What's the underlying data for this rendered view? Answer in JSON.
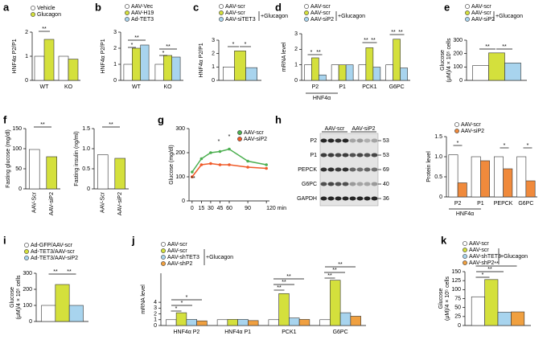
{
  "chart_data": [
    {
      "panel": "a",
      "type": "bar",
      "ylabel": "HNF4α P2/P1",
      "categories": [
        "WT",
        "KO"
      ],
      "series": [
        {
          "name": "Vehicle",
          "color": "#ffffff",
          "values": [
            1.0,
            1.0
          ]
        },
        {
          "name": "Glucagon",
          "color": "#d4e03c",
          "values": [
            1.7,
            0.88
          ]
        }
      ],
      "ylim": [
        0,
        2
      ],
      "yticks": [
        0,
        1,
        2
      ],
      "annotations": [
        "**"
      ]
    },
    {
      "panel": "b",
      "type": "bar",
      "ylabel": "HNF4α P2/P1",
      "categories": [
        "WT",
        "KO"
      ],
      "series": [
        {
          "name": "AAV-Vec",
          "color": "#ffffff",
          "values": [
            1.0,
            1.0
          ]
        },
        {
          "name": "AAV-H19",
          "color": "#d4e03c",
          "values": [
            2.0,
            1.55
          ]
        },
        {
          "name": "Ad-TET3",
          "color": "#a8d4ee",
          "values": [
            2.2,
            1.45
          ]
        }
      ],
      "ylim": [
        0,
        3
      ],
      "yticks": [
        0,
        1,
        2,
        3
      ],
      "annotations": [
        "*",
        "**",
        "*",
        "**"
      ]
    },
    {
      "panel": "c",
      "type": "bar",
      "ylabel": "HNF4α P2/P1",
      "categories": [
        null
      ],
      "series": [
        {
          "name": "AAV-scr",
          "color": "#ffffff",
          "values": [
            1.0
          ]
        },
        {
          "name": "AAV-scr",
          "color": "#d4e03c",
          "values": [
            2.2
          ]
        },
        {
          "name": "AAV-siTET3",
          "color": "#a8d4ee",
          "values": [
            0.95
          ]
        }
      ],
      "legend_note": "+Glucagon",
      "ylim": [
        0,
        3
      ],
      "yticks": [
        0,
        1,
        2,
        3
      ],
      "annotations": [
        "*",
        "*"
      ]
    },
    {
      "panel": "d",
      "type": "bar",
      "ylabel": "mRNA level",
      "categories": [
        "P2",
        "P1",
        "PCK1",
        "G6PC"
      ],
      "group_label": "HNF4α",
      "series": [
        {
          "name": "AAV-scr",
          "color": "#ffffff",
          "values": [
            1.0,
            1.0,
            1.0,
            1.0
          ]
        },
        {
          "name": "AAV-scr",
          "color": "#d4e03c",
          "values": [
            1.45,
            1.0,
            2.1,
            2.65
          ]
        },
        {
          "name": "AAV-siP2",
          "color": "#a8d4ee",
          "values": [
            0.35,
            1.0,
            0.85,
            0.8
          ]
        }
      ],
      "legend_note": "+Glucagon",
      "ylim": [
        0,
        3
      ],
      "yticks": [
        0,
        1,
        2,
        3
      ],
      "annotations": [
        "*",
        "**",
        "**",
        "**",
        "**",
        "**"
      ]
    },
    {
      "panel": "e",
      "type": "bar",
      "ylabel": [
        "Glucose",
        "(μM)/4 × 10⁵ cells"
      ],
      "categories": [
        null
      ],
      "series": [
        {
          "name": "AAV-scr",
          "color": "#ffffff",
          "values": [
            110
          ]
        },
        {
          "name": "AAV-scr",
          "color": "#d4e03c",
          "values": [
            205
          ]
        },
        {
          "name": "AAV-siP2",
          "color": "#a8d4ee",
          "values": [
            130
          ]
        }
      ],
      "legend_note": "+Glucagon",
      "ylim": [
        0,
        300
      ],
      "yticks": [
        0,
        100,
        200,
        300
      ],
      "annotations": [
        "**",
        "**"
      ]
    },
    {
      "panel": "f",
      "type": "bar",
      "ylabel": "Fasting glucose (mg/dl)",
      "categories": [
        "AAV-Scr",
        "AAV-siP2"
      ],
      "values": [
        98,
        80
      ],
      "colors": [
        "#ffffff",
        "#d4e03c"
      ],
      "ylim": [
        0,
        150
      ],
      "yticks": [
        0,
        50,
        100,
        150
      ],
      "annotations": [
        "**"
      ]
    },
    {
      "type": "bar",
      "ylabel": "Fasting insulin (ng/ml)",
      "categories": [
        "AAV-Scr",
        "AAV-siP2"
      ],
      "values": [
        0.85,
        0.76
      ],
      "colors": [
        "#ffffff",
        "#d4e03c"
      ],
      "ylim": [
        0,
        1.5
      ],
      "yticks": [
        0,
        0.5,
        {
          "value": 1,
          "label": "1.0"
        },
        1.5
      ],
      "annotations": [
        "**"
      ]
    },
    {
      "panel": "g",
      "type": "line",
      "ylabel": "Glucose (mg/dl)",
      "x": [
        0,
        15,
        30,
        45,
        60,
        90,
        120
      ],
      "xlim": [
        -5,
        125
      ],
      "xticks": [
        0,
        15,
        30,
        45,
        60,
        90,
        {
          "value": 120,
          "label": "120 min"
        }
      ],
      "series": [
        {
          "name": "AAV-scr",
          "color": "#4caf50",
          "values": [
            120,
            175,
            200,
            205,
            215,
            165,
            150
          ]
        },
        {
          "name": "AAV-siP2",
          "color": "#f05a28",
          "values": [
            100,
            150,
            155,
            150,
            150,
            140,
            135
          ]
        }
      ],
      "ylim": [
        0,
        300
      ],
      "yticks": [
        0,
        100,
        200,
        300
      ],
      "annotations": [
        "**",
        "*",
        "*"
      ]
    },
    {
      "panel": "h",
      "type": "bar",
      "ylabel": "Protein level",
      "categories": [
        "P2",
        "P1",
        "PEPCK",
        "G6PC"
      ],
      "group_label": "HNF4α",
      "series": [
        {
          "name": "AAV-scr",
          "color": "#ffffff",
          "values": [
            1.05,
            1.0,
            1.0,
            1.0
          ]
        },
        {
          "name": "AAV-siP2",
          "color": "#f08a3c",
          "values": [
            0.35,
            0.9,
            0.7,
            0.4
          ]
        }
      ],
      "ylim": [
        0,
        1.5
      ],
      "yticks": [
        0,
        0.5,
        {
          "value": 1,
          "label": "1.0"
        },
        1.5
      ],
      "annotations": [
        "*",
        "*",
        "*"
      ],
      "blot": {
        "lanes": [
          "AAV-scr",
          "AAV-siP2"
        ],
        "rows": [
          "P2",
          "P1",
          "PEPCK",
          "G6PC",
          "GAPDH"
        ],
        "sizes": [
          "53",
          "53",
          "69",
          "40",
          "36"
        ]
      }
    },
    {
      "panel": "i",
      "type": "bar",
      "ylabel": [
        "Glucose",
        "(μM)/4 × 10⁵ cells"
      ],
      "categories": [
        null
      ],
      "series": [
        {
          "name": "Ad-GFP/AAV-scr",
          "color": "#ffffff",
          "values": [
            100
          ]
        },
        {
          "name": "Ad-TET3/AAV-scr",
          "color": "#d4e03c",
          "values": [
            230
          ]
        },
        {
          "name": "Ad-TET3/AAV-siP2",
          "color": "#a8d4ee",
          "values": [
            100
          ]
        }
      ],
      "ylim": [
        0,
        300
      ],
      "yticks": [
        0,
        100,
        200,
        300
      ],
      "annotations": [
        "**",
        "**"
      ]
    },
    {
      "panel": "j",
      "type": "bar",
      "ylabel": "mRNA level",
      "categories": [
        "HNF4α P2",
        "HNF4α P1",
        "PCK1",
        "G6PC"
      ],
      "series": [
        {
          "name": "AAV-scr",
          "color": "#ffffff",
          "values": [
            1.0,
            1.0,
            1.0,
            1.0
          ]
        },
        {
          "name": "AAV-scr",
          "color": "#d4e03c",
          "values": [
            2.2,
            1.05,
            5.5,
            7.8
          ]
        },
        {
          "name": "AAV-shTET3",
          "color": "#a8d4ee",
          "values": [
            1.05,
            1.05,
            1.3,
            2.2
          ]
        },
        {
          "name": "AAV-shP2",
          "color": "#f0a040",
          "values": [
            0.8,
            0.85,
            1.05,
            1.6
          ]
        }
      ],
      "legend_note": "+Glucagon",
      "ylim": [
        0,
        9
      ],
      "yticks": [
        0,
        1,
        2,
        3,
        4
      ],
      "annotations": [
        "*",
        "*",
        "*",
        "**",
        "**",
        "**",
        "**",
        "**",
        "**"
      ]
    },
    {
      "panel": "k",
      "type": "bar",
      "ylabel": [
        "Glucose",
        "(μM)/4 × 10⁵ cells"
      ],
      "categories": [
        null
      ],
      "series": [
        {
          "name": "AAV-scr",
          "color": "#ffffff",
          "values": [
            80
          ]
        },
        {
          "name": "AAV-scr",
          "color": "#d4e03c",
          "values": [
            128
          ]
        },
        {
          "name": "AAV-shTET3",
          "color": "#a8d4ee",
          "values": [
            37
          ]
        },
        {
          "name": "AAV-shP2",
          "color": "#f0a040",
          "values": [
            38
          ]
        }
      ],
      "legend_note": "+Glucagon",
      "ylim": [
        0,
        150
      ],
      "yticks": [
        0,
        25,
        50,
        75,
        100,
        125,
        150
      ],
      "annotations": [
        "*",
        "**",
        "**"
      ]
    }
  ]
}
